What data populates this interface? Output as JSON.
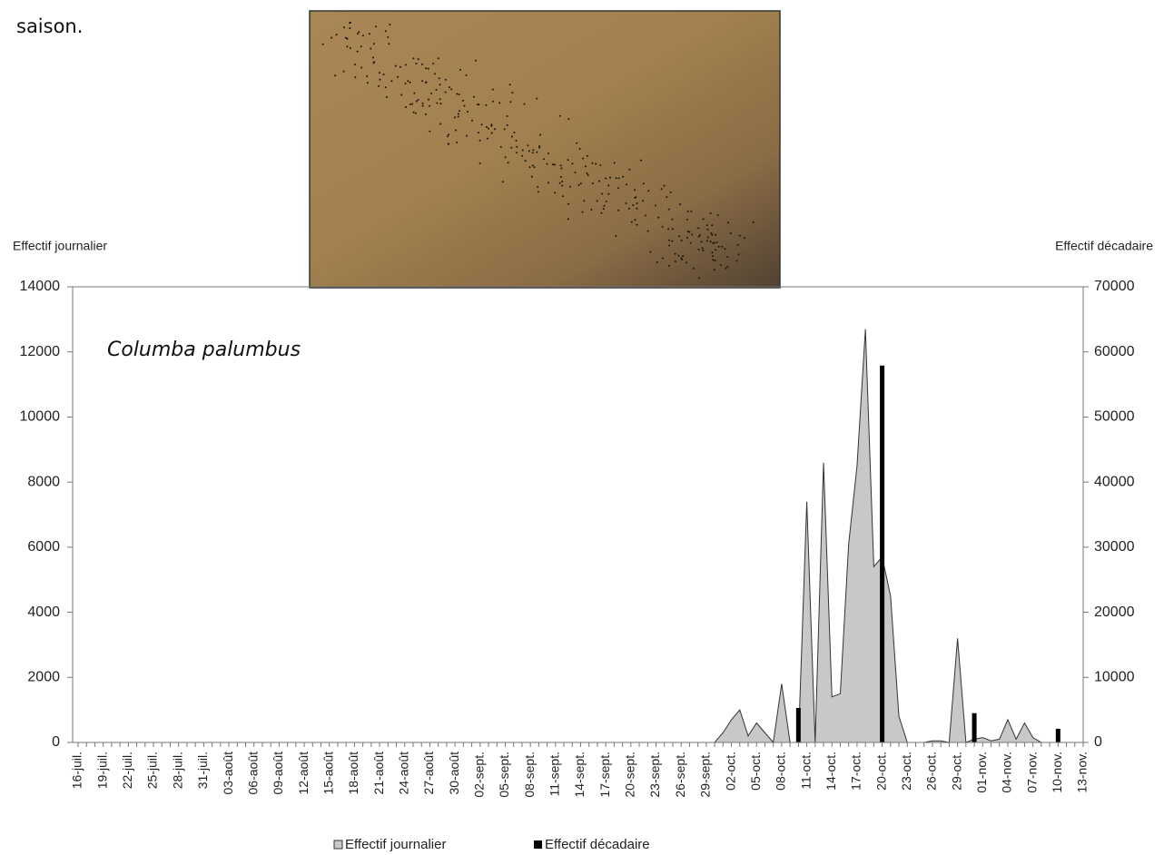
{
  "text": "saison.",
  "chart_data": {
    "type": "area",
    "annotation": "Columba palumbus",
    "ylabel": "Effectif journalier",
    "y2label": "Effectif décadaire",
    "categories": [
      "16-juil.",
      null,
      null,
      "19-juil.",
      null,
      null,
      "22-juil.",
      null,
      null,
      "25-juil.",
      null,
      null,
      "28-juil.",
      null,
      null,
      "31-juil.",
      null,
      null,
      "03-août",
      null,
      null,
      "06-août",
      null,
      null,
      "09-août",
      null,
      null,
      "12-août",
      null,
      null,
      "15-août",
      null,
      null,
      "18-août",
      null,
      null,
      "21-août",
      null,
      null,
      "24-août",
      null,
      null,
      "27-août",
      null,
      null,
      "30-août",
      null,
      null,
      "02-sept.",
      null,
      null,
      "05-sept.",
      null,
      null,
      "08-sept.",
      null,
      null,
      "11-sept.",
      null,
      null,
      "14-sept.",
      null,
      null,
      "17-sept.",
      null,
      null,
      "20-sept.",
      null,
      null,
      "23-sept.",
      null,
      null,
      "26-sept.",
      null,
      null,
      "29-sept.",
      null,
      null,
      "02-oct.",
      null,
      null,
      "05-oct.",
      null,
      null,
      "08-oct.",
      null,
      null,
      "11-oct.",
      null,
      null,
      "14-oct.",
      null,
      null,
      "17-oct.",
      null,
      null,
      "20-oct.",
      null,
      null,
      "23-oct.",
      null,
      null,
      "26-oct.",
      null,
      null,
      "29-oct.",
      null,
      null,
      "01-nov.",
      null,
      null,
      "04-nov.",
      null,
      null,
      "07-nov.",
      null,
      null,
      "10-nov.",
      null,
      null,
      "13-nov."
    ],
    "series": [
      {
        "name": "Effectif journalier",
        "type": "area",
        "color": "#c8c8c8",
        "axis": "y",
        "values": [
          0,
          0,
          0,
          0,
          0,
          0,
          0,
          0,
          0,
          0,
          0,
          0,
          0,
          0,
          0,
          0,
          0,
          0,
          0,
          0,
          0,
          0,
          0,
          0,
          0,
          0,
          0,
          0,
          0,
          0,
          0,
          0,
          0,
          0,
          0,
          0,
          0,
          0,
          0,
          0,
          0,
          0,
          0,
          0,
          0,
          0,
          0,
          0,
          0,
          0,
          0,
          0,
          0,
          0,
          0,
          0,
          0,
          0,
          0,
          0,
          0,
          0,
          0,
          0,
          0,
          0,
          0,
          0,
          0,
          0,
          0,
          0,
          0,
          0,
          0,
          0,
          0,
          300,
          700,
          1000,
          200,
          600,
          300,
          0,
          1800,
          0,
          0,
          7400,
          0,
          8600,
          1400,
          1500,
          6100,
          8500,
          12700,
          5400,
          5700,
          4500,
          800,
          0,
          0,
          0,
          50,
          50,
          0,
          3200,
          0,
          100,
          150,
          50,
          100,
          700,
          100,
          600,
          150,
          0,
          0,
          0,
          0,
          0,
          0
        ]
      },
      {
        "name": "Effectif décadaire",
        "type": "bar",
        "color": "#000000",
        "axis": "y2",
        "values": [
          null,
          null,
          null,
          null,
          null,
          null,
          null,
          null,
          null,
          null,
          null,
          null,
          null,
          null,
          null,
          null,
          null,
          null,
          null,
          null,
          null,
          null,
          null,
          null,
          null,
          null,
          null,
          null,
          null,
          null,
          null,
          null,
          null,
          null,
          null,
          null,
          null,
          null,
          null,
          null,
          null,
          null,
          null,
          null,
          null,
          null,
          null,
          null,
          null,
          null,
          null,
          null,
          null,
          null,
          null,
          null,
          null,
          null,
          null,
          null,
          null,
          null,
          null,
          null,
          null,
          null,
          null,
          null,
          null,
          null,
          null,
          null,
          null,
          null,
          null,
          null,
          null,
          null,
          null,
          null,
          null,
          null,
          null,
          null,
          null,
          null,
          5300,
          null,
          null,
          null,
          null,
          null,
          null,
          null,
          null,
          null,
          57900,
          null,
          null,
          null,
          null,
          null,
          null,
          null,
          null,
          null,
          null,
          4500,
          null,
          null,
          null,
          null,
          null,
          null,
          null,
          null,
          null,
          2100,
          null,
          null,
          null
        ]
      }
    ],
    "ylim": [
      0,
      14000
    ],
    "yticks": [
      0,
      2000,
      4000,
      6000,
      8000,
      10000,
      12000,
      14000
    ],
    "y2lim": [
      0,
      70000
    ],
    "y2ticks": [
      0,
      10000,
      20000,
      30000,
      40000,
      50000,
      60000,
      70000
    ],
    "legend": "bottom"
  }
}
